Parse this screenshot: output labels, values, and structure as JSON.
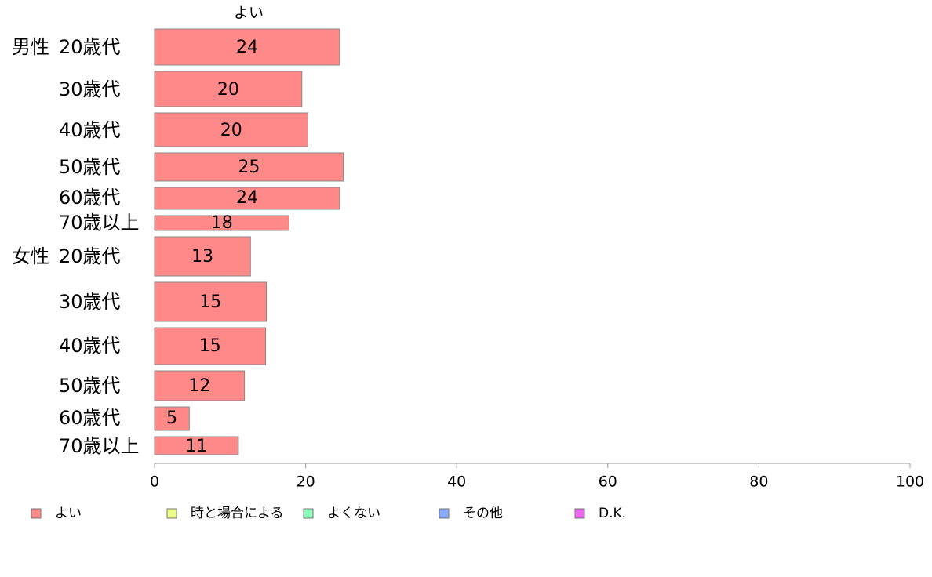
{
  "chart_data": {
    "type": "bar",
    "orientation": "horizontal",
    "column_header": "よい",
    "groups": [
      {
        "label": "男性",
        "rows": [
          "20歳代",
          "30歳代",
          "40歳代",
          "50歳代",
          "60歳代",
          "70歳以上"
        ]
      },
      {
        "label": "女性",
        "rows": [
          "20歳代",
          "30歳代",
          "40歳代",
          "50歳代",
          "60歳代",
          "70歳以上"
        ]
      }
    ],
    "series": [
      {
        "name": "よい",
        "color": "#ff8888",
        "values": [
          24.5,
          19.5,
          20.3,
          25.0,
          24.5,
          17.8,
          12.7,
          14.8,
          14.7,
          11.9,
          4.6,
          11.1
        ],
        "labels": [
          "24",
          "20",
          "20",
          "25",
          "24",
          "18",
          "13",
          "15",
          "15",
          "12",
          "5",
          "11"
        ]
      }
    ],
    "legend": [
      {
        "label": "よい",
        "color": "#ff8888"
      },
      {
        "label": "時と場合による",
        "color": "#eeff88"
      },
      {
        "label": "よくない",
        "color": "#88ffbb"
      },
      {
        "label": "その他",
        "color": "#88aaff"
      },
      {
        "label": "D.K.",
        "color": "#ee66ee"
      }
    ],
    "legend_position": "bottom",
    "xlim": [
      0,
      100
    ],
    "xticks": [
      0,
      20,
      40,
      60,
      80,
      100
    ],
    "grid": false
  }
}
